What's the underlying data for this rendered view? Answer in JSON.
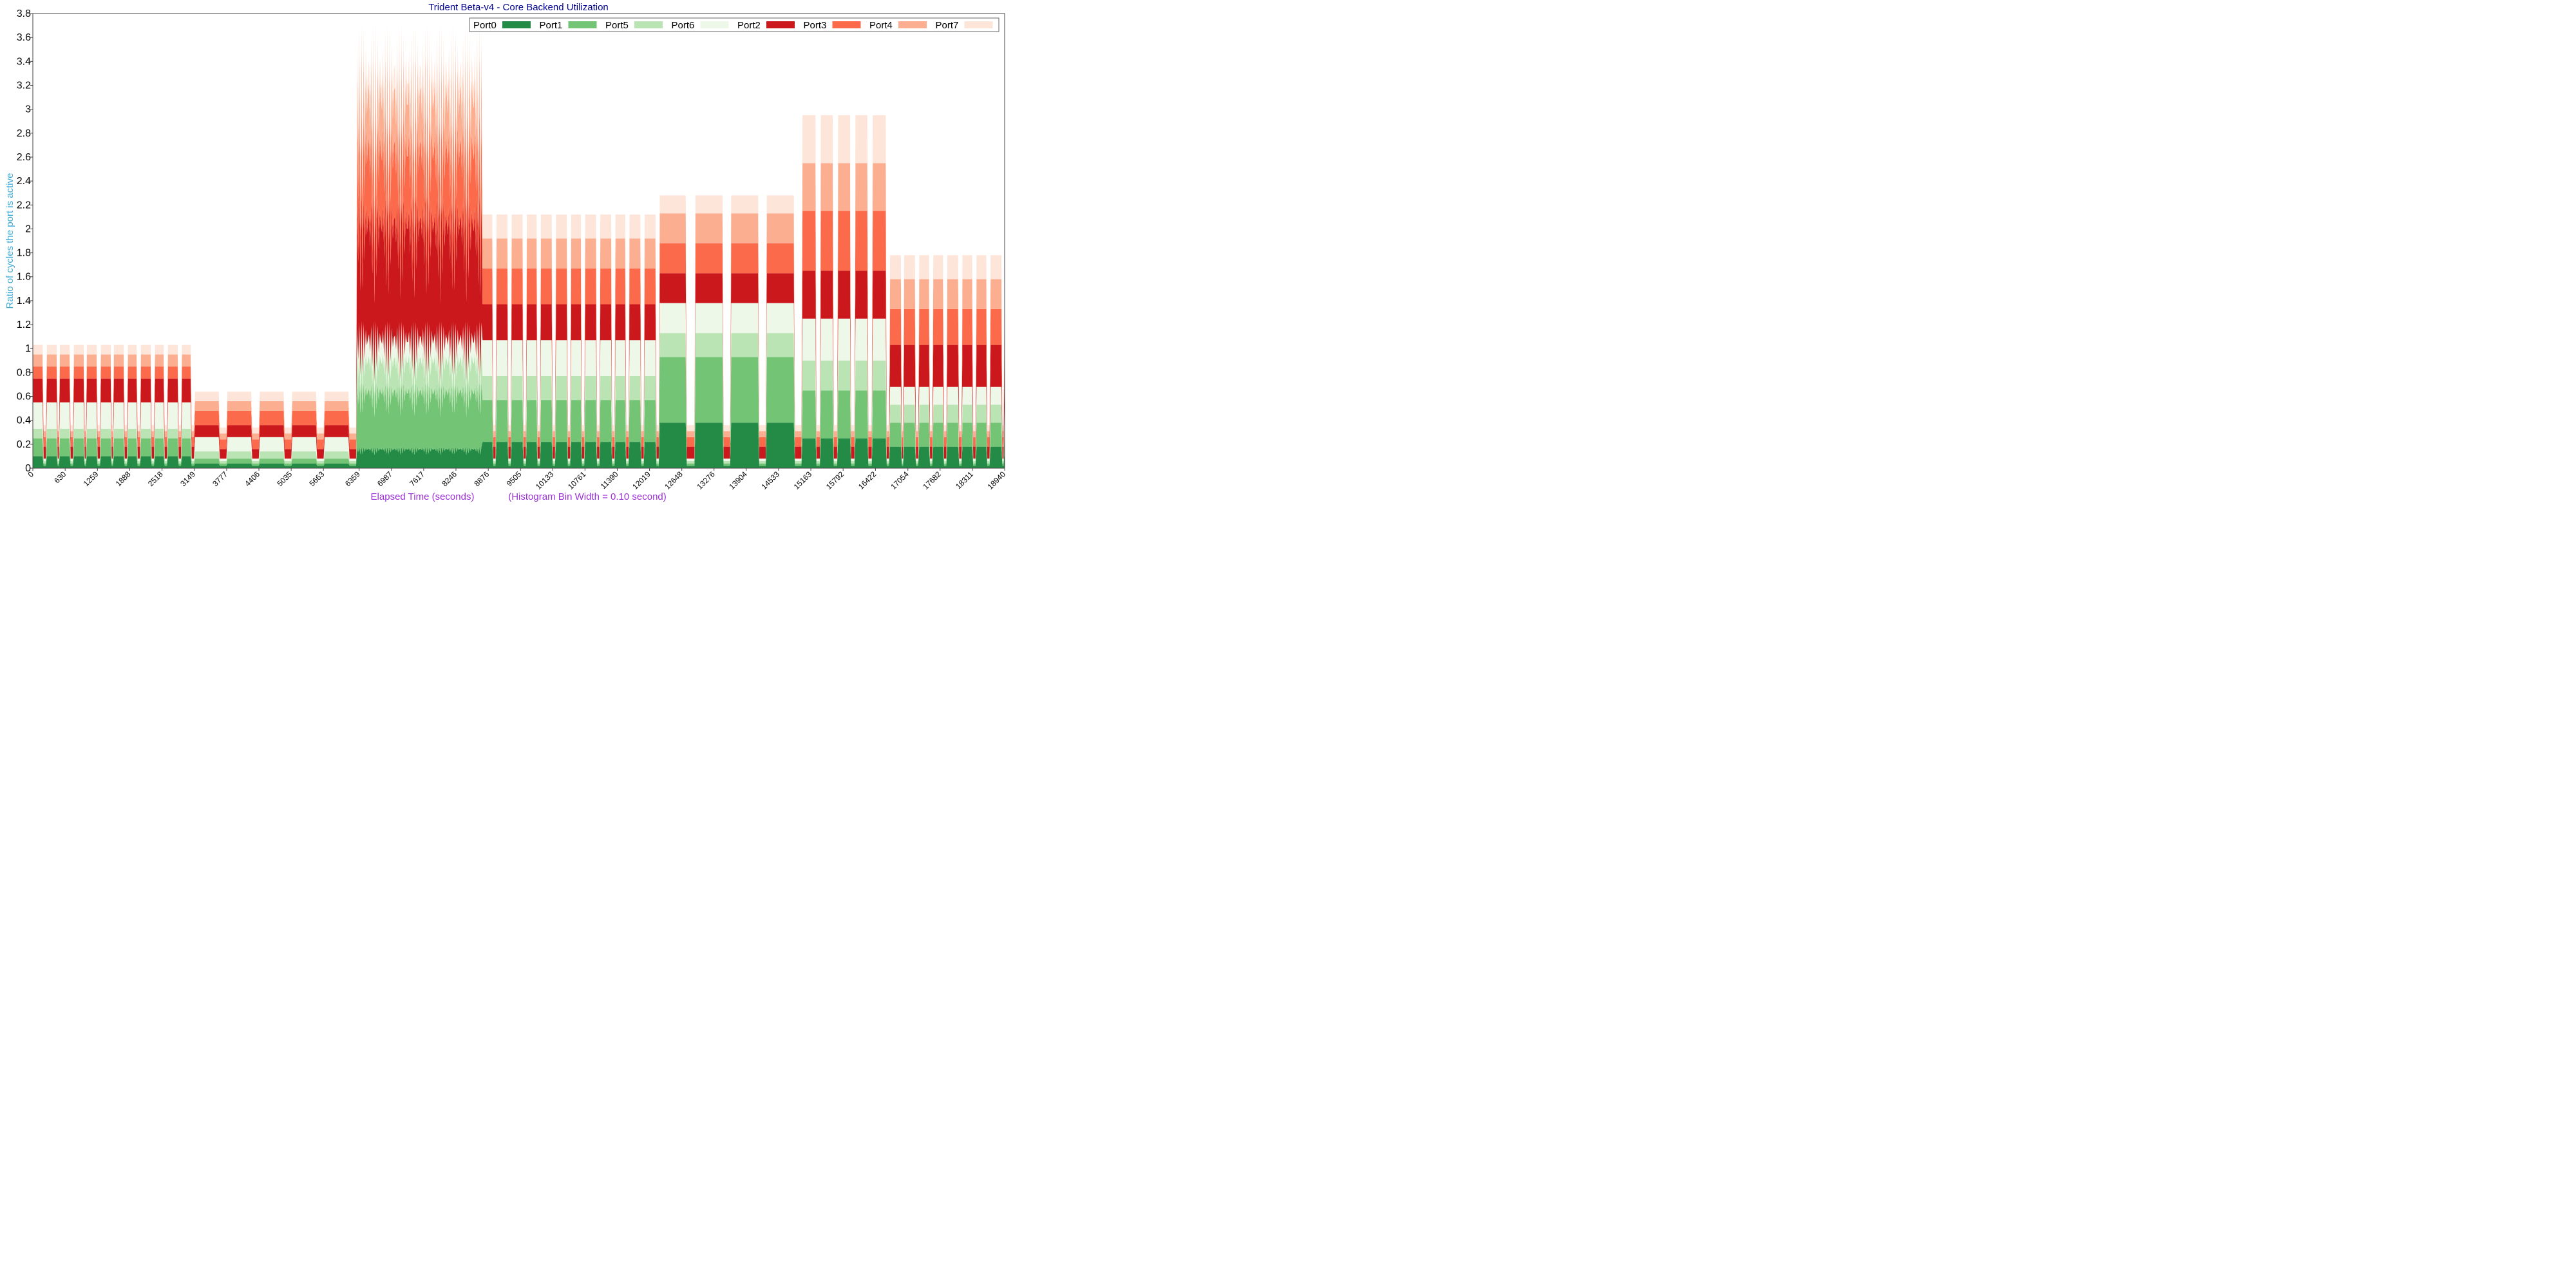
{
  "chart_data": {
    "type": "area",
    "stacked": true,
    "title": "Trident Beta-v4 - Core Backend Utilization",
    "ylabel": "Ratio of cycles the port is active",
    "xlabel": "Elapsed Time (seconds)",
    "xlabel_note": "(Histogram Bin Width = 0.10 second)",
    "ylim": [
      0,
      3.8
    ],
    "xlim": [
      0,
      18940
    ],
    "yticks": [
      0,
      0.2,
      0.4,
      0.6,
      0.8,
      1,
      1.2,
      1.4,
      1.6,
      1.8,
      2,
      2.2,
      2.4,
      2.6,
      2.8,
      3,
      3.2,
      3.4,
      3.6,
      3.8
    ],
    "xticks": [
      0,
      630,
      1259,
      1888,
      2518,
      3149,
      3777,
      4406,
      5035,
      5663,
      6359,
      6987,
      7617,
      8246,
      8876,
      9505,
      10133,
      10761,
      11390,
      12019,
      12648,
      13276,
      13904,
      14533,
      15163,
      15792,
      16422,
      17054,
      17682,
      18311,
      18940
    ],
    "legend_position": "top-right",
    "grid": false,
    "series": [
      {
        "name": "Port0",
        "color": "#238b45"
      },
      {
        "name": "Port1",
        "color": "#74c476"
      },
      {
        "name": "Port5",
        "color": "#bae4b3"
      },
      {
        "name": "Port6",
        "color": "#edf8e9"
      },
      {
        "name": "Port2",
        "color": "#cb181d"
      },
      {
        "name": "Port3",
        "color": "#fb6a4a"
      },
      {
        "name": "Port4",
        "color": "#fcae91"
      },
      {
        "name": "Port7",
        "color": "#fee5d9"
      }
    ],
    "segments": [
      {
        "x0": 0,
        "x1": 3150,
        "pattern": "cycle",
        "bursts": 12,
        "peak": [
          0.1,
          0.15,
          0.08,
          0.22,
          0.2,
          0.1,
          0.1,
          0.08
        ],
        "idle": [
          0.02,
          0.02,
          0.02,
          0.02,
          0.1,
          0.08,
          0.05,
          0.05
        ]
      },
      {
        "x0": 3150,
        "x1": 6300,
        "pattern": "cycle",
        "bursts": 5,
        "peak": [
          0.04,
          0.04,
          0.06,
          0.12,
          0.1,
          0.12,
          0.08,
          0.08
        ],
        "idle": [
          0.02,
          0.02,
          0.02,
          0.02,
          0.08,
          0.08,
          0.05,
          0.05
        ]
      },
      {
        "x0": 6300,
        "x1": 8750,
        "pattern": "spiky",
        "bursts": 4,
        "peak": [
          0.18,
          0.55,
          0.3,
          0.2,
          1.1,
          0.7,
          0.5,
          0.2
        ],
        "idle": [
          0.02,
          0.02,
          0.02,
          0.02,
          0.1,
          0.08,
          0.05,
          0.05
        ]
      },
      {
        "x0": 8750,
        "x1": 12200,
        "pattern": "cycle",
        "bursts": 12,
        "peak": [
          0.22,
          0.35,
          0.2,
          0.3,
          0.3,
          0.3,
          0.25,
          0.2
        ],
        "idle": [
          0.02,
          0.02,
          0.02,
          0.02,
          0.1,
          0.08,
          0.05,
          0.05
        ]
      },
      {
        "x0": 12200,
        "x1": 15000,
        "pattern": "cycle",
        "bursts": 4,
        "peak": [
          0.38,
          0.55,
          0.2,
          0.25,
          0.25,
          0.25,
          0.25,
          0.15
        ],
        "idle": [
          0.02,
          0.02,
          0.02,
          0.02,
          0.1,
          0.08,
          0.05,
          0.05
        ]
      },
      {
        "x0": 15000,
        "x1": 16700,
        "pattern": "cycle",
        "bursts": 5,
        "peak": [
          0.25,
          0.4,
          0.25,
          0.35,
          0.4,
          0.5,
          0.4,
          0.4
        ],
        "idle": [
          0.02,
          0.02,
          0.02,
          0.02,
          0.1,
          0.08,
          0.05,
          0.05
        ]
      },
      {
        "x0": 16700,
        "x1": 18940,
        "pattern": "cycle",
        "bursts": 8,
        "peak": [
          0.18,
          0.2,
          0.15,
          0.15,
          0.35,
          0.3,
          0.25,
          0.2
        ],
        "idle": [
          0.02,
          0.02,
          0.02,
          0.02,
          0.1,
          0.08,
          0.05,
          0.05
        ]
      }
    ]
  }
}
